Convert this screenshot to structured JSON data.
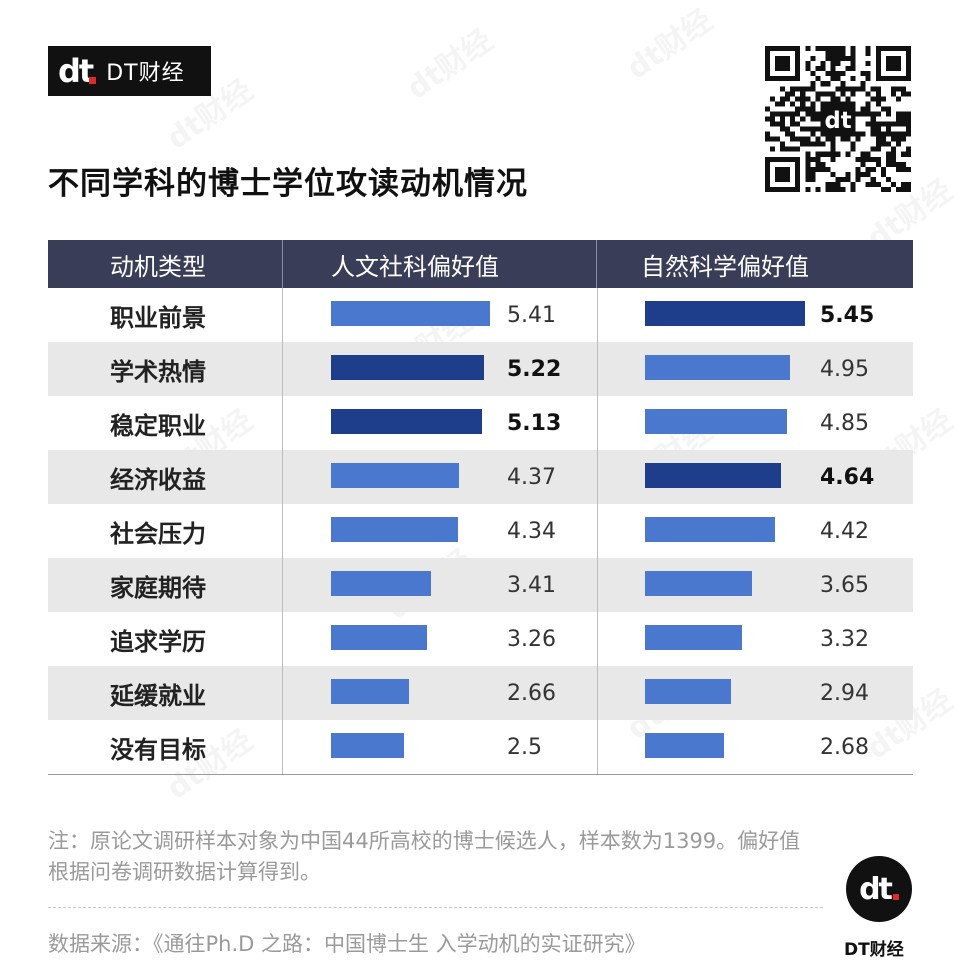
{
  "header": {
    "logo_mark": "dt",
    "logo_text": "DT财经",
    "title": "不同学科的博士学位攻读动机情况"
  },
  "colors": {
    "bar_normal": "#4b78cf",
    "bar_highlight": "#1e3d8a",
    "header_bg": "#3a3d57"
  },
  "chart_data": {
    "type": "bar",
    "orientation": "horizontal",
    "columns": [
      "动机类型",
      "人文社科偏好值",
      "自然科学偏好值"
    ],
    "categories": [
      "职业前景",
      "学术热情",
      "稳定职业",
      "经济收益",
      "社会压力",
      "家庭期待",
      "追求学历",
      "延缓就业",
      "没有目标"
    ],
    "series": [
      {
        "name": "人文社科偏好值",
        "values": [
          "5.41",
          "5.22",
          "5.13",
          "4.37",
          "4.34",
          "3.41",
          "3.26",
          "2.66",
          "2.5"
        ],
        "highlight": [
          false,
          true,
          true,
          false,
          false,
          false,
          false,
          false,
          false
        ]
      },
      {
        "name": "自然科学偏好值",
        "values": [
          "5.45",
          "4.95",
          "4.85",
          "4.64",
          "4.42",
          "3.65",
          "3.32",
          "2.94",
          "2.68"
        ],
        "highlight": [
          true,
          false,
          false,
          true,
          false,
          false,
          false,
          false,
          false
        ]
      }
    ],
    "xlim": [
      0,
      5.45
    ],
    "grid": false,
    "legend": "none"
  },
  "footer": {
    "note": "注：原论文调研样本对象为中国44所高校的博士候选人，样本数为1399。偏好值根据问卷调研数据计算得到。",
    "source": "数据来源：《通往Ph.D 之路：中国博士生 入学动机的实证研究》",
    "brand": "DT财经",
    "brand_mark": "dt"
  }
}
